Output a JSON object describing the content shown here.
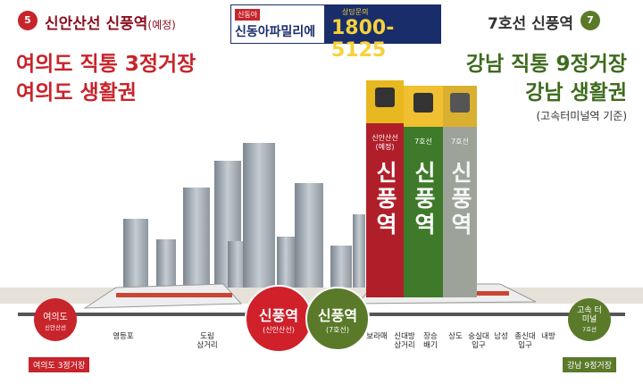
{
  "header": {
    "left_line": {
      "badge": "5",
      "text": "신안산선 신풍역",
      "suffix": "(예정)"
    },
    "banner": {
      "brand_tag": "신동아",
      "name": "신동아파밀리에",
      "inquiry": "상담문의",
      "phone": "1800-5125"
    },
    "right_line": {
      "badge": "7",
      "text": "7호선 신풍역"
    }
  },
  "headlines": {
    "left": [
      "여의도 직통 3정거장",
      "여의도 생활권"
    ],
    "right": [
      "강남 직통 9정거장",
      "강남 생활권"
    ],
    "right_note": "(고속터미널역 기준)"
  },
  "towers": [
    {
      "line": "신안산선",
      "note": "(예정)",
      "name": "신풍역"
    },
    {
      "line": "7호선",
      "name": "신풍역"
    },
    {
      "line": "7호선",
      "name": "신풍역"
    }
  ],
  "route": {
    "start": {
      "name": "여의도",
      "line": "신안산선",
      "tag": "여의도 3정거장"
    },
    "stations": [
      {
        "lines": [
          "영등포"
        ]
      },
      {
        "lines": [
          "도림",
          "삼거리"
        ]
      },
      {
        "lines": [
          "보라매"
        ]
      },
      {
        "lines": [
          "신대방",
          "삼거리"
        ]
      },
      {
        "lines": [
          "장승",
          "배기"
        ]
      },
      {
        "lines": [
          "상도"
        ]
      },
      {
        "lines": [
          "숭실대",
          "입구"
        ]
      },
      {
        "lines": [
          "남성"
        ]
      },
      {
        "lines": [
          "총신대",
          "입구"
        ]
      },
      {
        "lines": [
          "내방"
        ]
      }
    ],
    "hubs": [
      {
        "name": "신풍역",
        "line": "(신안산선)"
      },
      {
        "name": "신풍역",
        "line": "(7호선)"
      }
    ],
    "end": {
      "name": "고속 터미널",
      "line": "7호선",
      "tag": "강남 9정거장"
    }
  }
}
